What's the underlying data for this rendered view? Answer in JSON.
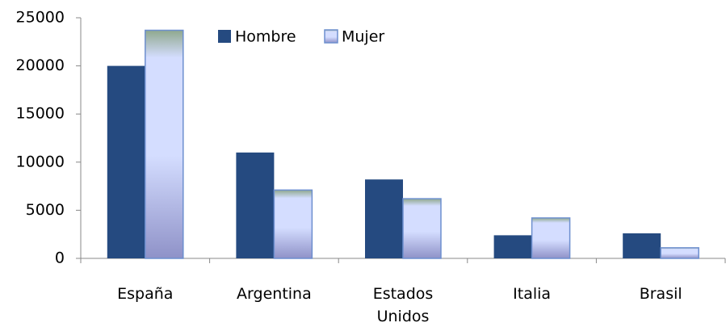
{
  "chart_data": {
    "type": "bar",
    "categories": [
      "España",
      "Argentina",
      "Estados Unidos",
      "Italia",
      "Brasil"
    ],
    "series": [
      {
        "name": "Hombre",
        "color": "#254a80",
        "values": [
          20000,
          11000,
          8200,
          2400,
          2600
        ]
      },
      {
        "name": "Mujer",
        "color": "#d4ddff",
        "values": [
          23700,
          7100,
          6200,
          4200,
          1100
        ]
      }
    ],
    "ylim": [
      0,
      25000
    ],
    "yticks": [
      0,
      5000,
      10000,
      15000,
      20000,
      25000
    ],
    "legend": "top"
  }
}
